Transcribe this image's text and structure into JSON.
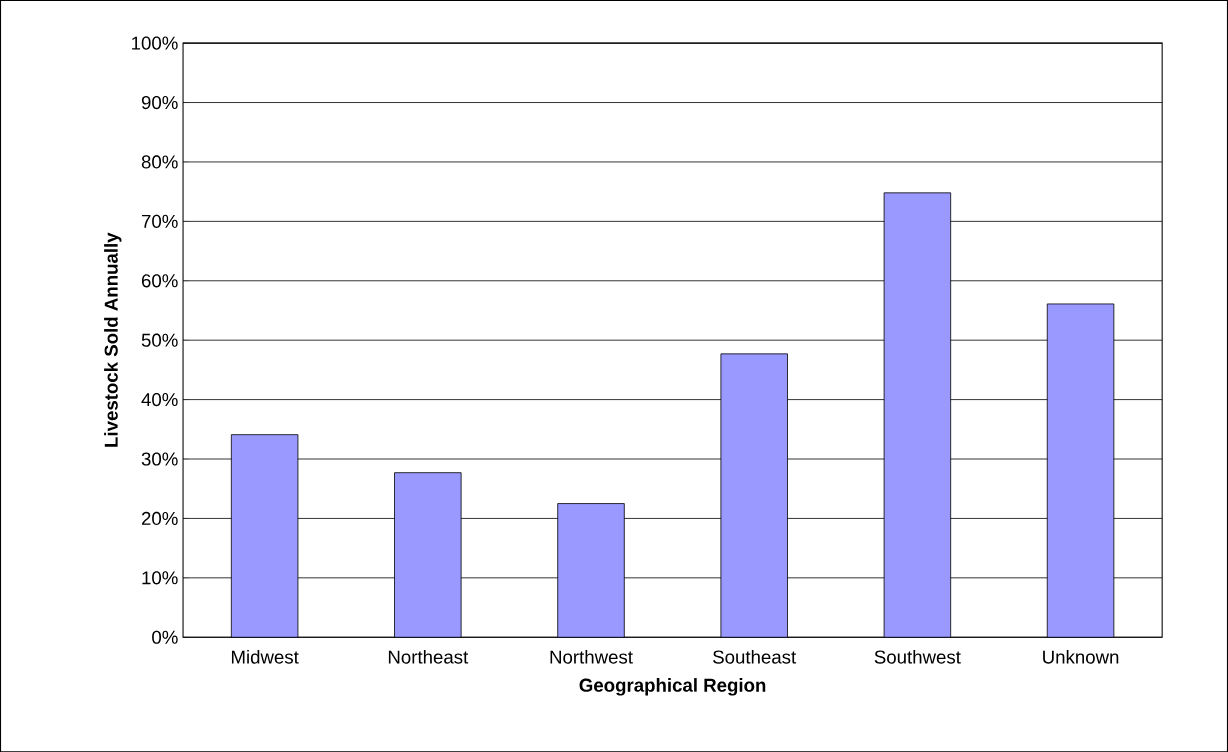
{
  "chart_data": {
    "type": "bar",
    "categories": [
      "Midwest",
      "Northeast",
      "Northwest",
      "Southeast",
      "Southwest",
      "Unknown"
    ],
    "values": [
      34.1,
      27.7,
      22.5,
      47.7,
      74.8,
      56.1
    ],
    "color": "#9999ff",
    "xlabel": "Geographical Region",
    "ylabel": "Livestock Sold Annually",
    "ylim": [
      0,
      100
    ],
    "yticks": [
      {
        "value": 0,
        "label": "0%"
      },
      {
        "value": 10,
        "label": "10%"
      },
      {
        "value": 20,
        "label": "20%"
      },
      {
        "value": 30,
        "label": "30%"
      },
      {
        "value": 40,
        "label": "40%"
      },
      {
        "value": 50,
        "label": "50%"
      },
      {
        "value": 60,
        "label": "60%"
      },
      {
        "value": 70,
        "label": "70%"
      },
      {
        "value": 80,
        "label": "80%"
      },
      {
        "value": 90,
        "label": "90%"
      },
      {
        "value": 100,
        "label": "100%"
      }
    ],
    "grid": "y"
  }
}
